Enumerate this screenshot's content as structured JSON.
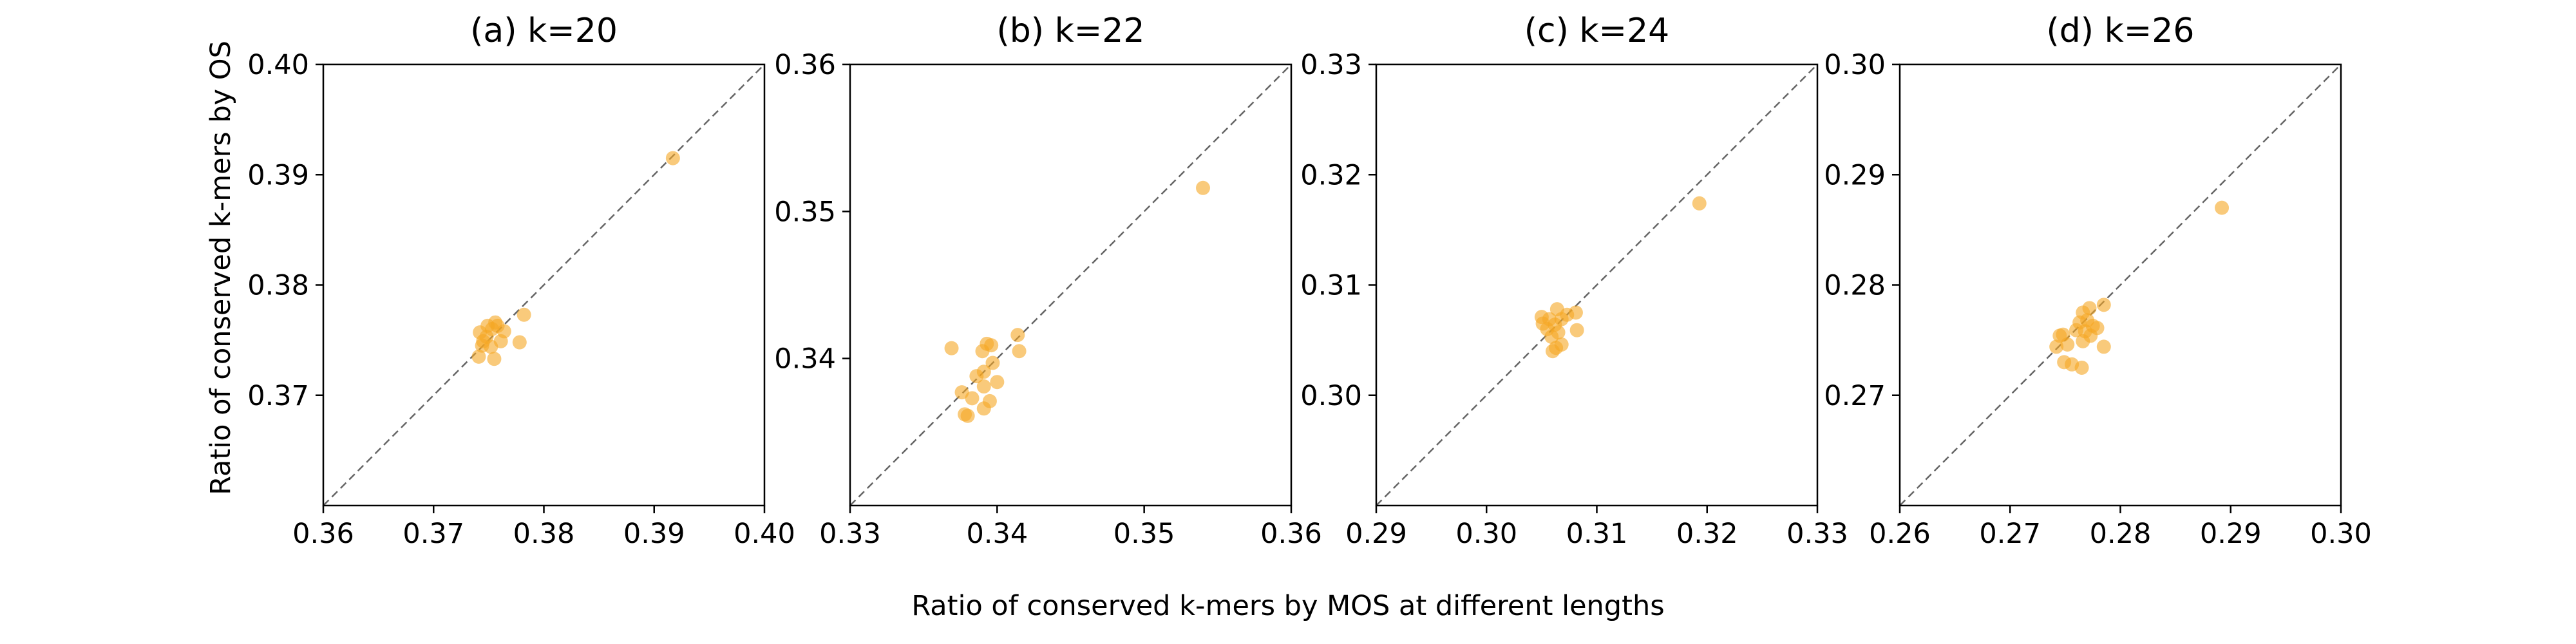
{
  "figure": {
    "xlabel": "Ratio of conserved k-mers by MOS at different lengths",
    "ylabel": "Ratio of conserved k-mers by OS",
    "point_color": "#f5a623",
    "diagonal_color": "#666666"
  },
  "chart_data": [
    {
      "type": "scatter",
      "title": "(a) k=20",
      "xlim": [
        0.36,
        0.4
      ],
      "ylim": [
        0.36,
        0.4
      ],
      "xticks": [
        "0.36",
        "0.37",
        "0.38",
        "0.39",
        "0.40"
      ],
      "yticks": [
        "0.37",
        "0.38",
        "0.39",
        "0.40"
      ],
      "ytick_values": [
        0.37,
        0.38,
        0.39,
        0.4
      ],
      "diagonal": true,
      "points": [
        [
          0.3917,
          0.3915
        ],
        [
          0.3782,
          0.3773
        ],
        [
          0.3778,
          0.3748
        ],
        [
          0.3764,
          0.3758
        ],
        [
          0.3761,
          0.3749
        ],
        [
          0.3758,
          0.3763
        ],
        [
          0.3756,
          0.3766
        ],
        [
          0.3753,
          0.376
        ],
        [
          0.3752,
          0.3744
        ],
        [
          0.3755,
          0.3733
        ],
        [
          0.3749,
          0.3763
        ],
        [
          0.3748,
          0.3753
        ],
        [
          0.3745,
          0.3749
        ],
        [
          0.3744,
          0.3745
        ],
        [
          0.3742,
          0.3757
        ],
        [
          0.3741,
          0.3735
        ]
      ]
    },
    {
      "type": "scatter",
      "title": "(b) k=22",
      "xlim": [
        0.33,
        0.36
      ],
      "ylim": [
        0.33,
        0.36
      ],
      "xticks": [
        "0.33",
        "0.34",
        "0.35",
        "0.36"
      ],
      "yticks": [
        "0.34",
        "0.35",
        "0.36"
      ],
      "ytick_values": [
        0.34,
        0.35,
        0.36
      ],
      "diagonal": true,
      "points": [
        [
          0.354,
          0.3516
        ],
        [
          0.3414,
          0.3416
        ],
        [
          0.3415,
          0.3405
        ],
        [
          0.3396,
          0.3409
        ],
        [
          0.3393,
          0.341
        ],
        [
          0.339,
          0.3405
        ],
        [
          0.3369,
          0.3407
        ],
        [
          0.3397,
          0.3397
        ],
        [
          0.3391,
          0.3391
        ],
        [
          0.3386,
          0.3388
        ],
        [
          0.34,
          0.3384
        ],
        [
          0.3391,
          0.3381
        ],
        [
          0.3376,
          0.3377
        ],
        [
          0.3383,
          0.3373
        ],
        [
          0.3395,
          0.3371
        ],
        [
          0.3391,
          0.3366
        ],
        [
          0.3378,
          0.3362
        ],
        [
          0.338,
          0.3361
        ]
      ]
    },
    {
      "type": "scatter",
      "title": "(c) k=24",
      "xlim": [
        0.29,
        0.33
      ],
      "ylim": [
        0.29,
        0.33
      ],
      "xticks": [
        "0.29",
        "0.30",
        "0.31",
        "0.32",
        "0.33"
      ],
      "yticks": [
        "0.30",
        "0.31",
        "0.32",
        "0.33"
      ],
      "ytick_values": [
        0.3,
        0.31,
        0.32,
        0.33
      ],
      "diagonal": true,
      "points": [
        [
          0.3193,
          0.3174
        ],
        [
          0.3081,
          0.3075
        ],
        [
          0.3073,
          0.3073
        ],
        [
          0.3064,
          0.3078
        ],
        [
          0.3068,
          0.3069
        ],
        [
          0.3057,
          0.3069
        ],
        [
          0.305,
          0.3071
        ],
        [
          0.3062,
          0.3064
        ],
        [
          0.3055,
          0.306
        ],
        [
          0.3065,
          0.3057
        ],
        [
          0.3082,
          0.3059
        ],
        [
          0.3059,
          0.3053
        ],
        [
          0.3068,
          0.3046
        ],
        [
          0.3063,
          0.3043
        ],
        [
          0.306,
          0.304
        ],
        [
          0.3051,
          0.3065
        ]
      ]
    },
    {
      "type": "scatter",
      "title": "(d) k=26",
      "xlim": [
        0.26,
        0.3
      ],
      "ylim": [
        0.26,
        0.3
      ],
      "xticks": [
        "0.26",
        "0.27",
        "0.28",
        "0.29",
        "0.30"
      ],
      "yticks": [
        "0.27",
        "0.28",
        "0.29",
        "0.30"
      ],
      "ytick_values": [
        0.27,
        0.28,
        0.29,
        0.3
      ],
      "diagonal": true,
      "points": [
        [
          0.2892,
          0.287
        ],
        [
          0.2785,
          0.2782
        ],
        [
          0.2772,
          0.2779
        ],
        [
          0.2766,
          0.2775
        ],
        [
          0.277,
          0.2768
        ],
        [
          0.2775,
          0.2763
        ],
        [
          0.2779,
          0.2761
        ],
        [
          0.2763,
          0.2766
        ],
        [
          0.2768,
          0.2758
        ],
        [
          0.2773,
          0.2754
        ],
        [
          0.276,
          0.2759
        ],
        [
          0.2748,
          0.2755
        ],
        [
          0.2742,
          0.2744
        ],
        [
          0.2766,
          0.2749
        ],
        [
          0.2785,
          0.2744
        ],
        [
          0.2752,
          0.2746
        ],
        [
          0.2749,
          0.273
        ],
        [
          0.2756,
          0.2728
        ],
        [
          0.2765,
          0.2725
        ],
        [
          0.2745,
          0.2754
        ]
      ]
    }
  ]
}
